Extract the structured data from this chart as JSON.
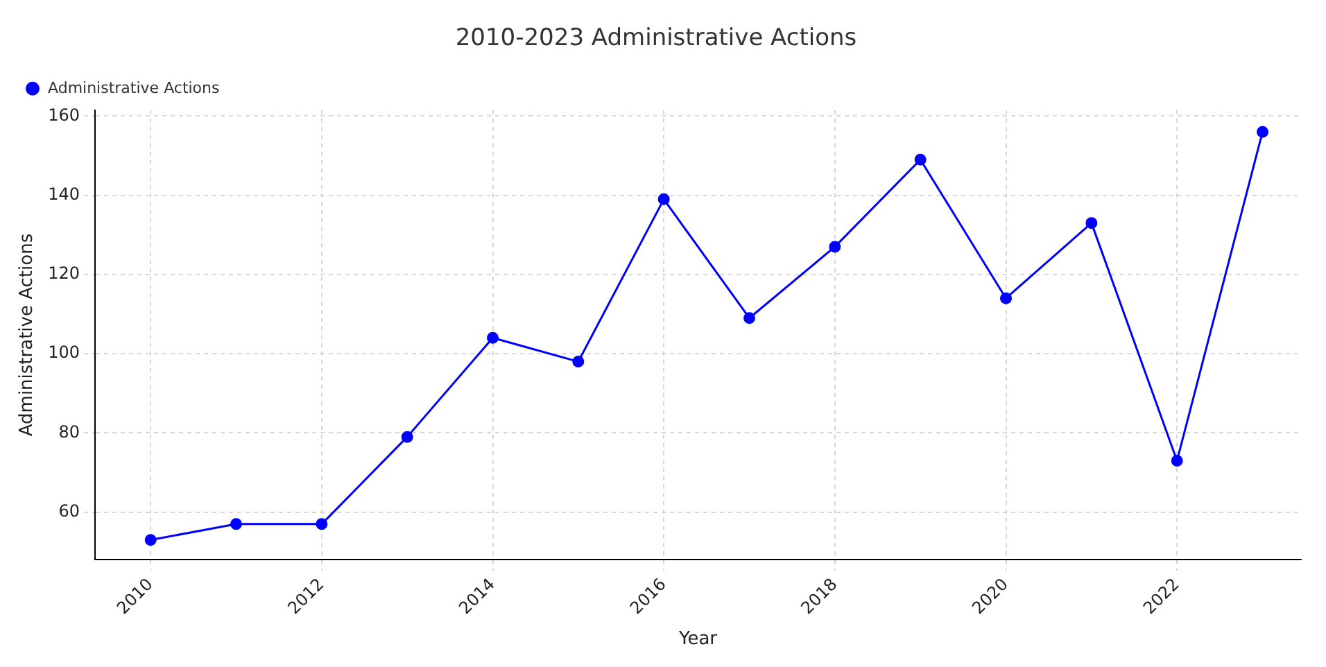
{
  "chart_data": {
    "type": "line",
    "title": "2010-2023 Administrative Actions",
    "xlabel": "Year",
    "ylabel": "Administrative Actions",
    "x": [
      2010,
      2011,
      2012,
      2013,
      2014,
      2015,
      2016,
      2017,
      2018,
      2019,
      2020,
      2021,
      2022,
      2023
    ],
    "series": [
      {
        "name": "Administrative Actions",
        "color": "#0000ff",
        "values": [
          53,
          57,
          57,
          79,
          104,
          98,
          139,
          109,
          127,
          149,
          114,
          133,
          73,
          156
        ]
      }
    ],
    "xlim": [
      2009.35,
      2023.45
    ],
    "xticks": [
      2010,
      2012,
      2014,
      2016,
      2018,
      2020,
      2022
    ],
    "ylim": [
      48,
      161.5
    ],
    "yticks": [
      60,
      80,
      100,
      120,
      140,
      160
    ],
    "grid": true,
    "legend": "top left",
    "marker": "circle",
    "line_style": "solid"
  }
}
